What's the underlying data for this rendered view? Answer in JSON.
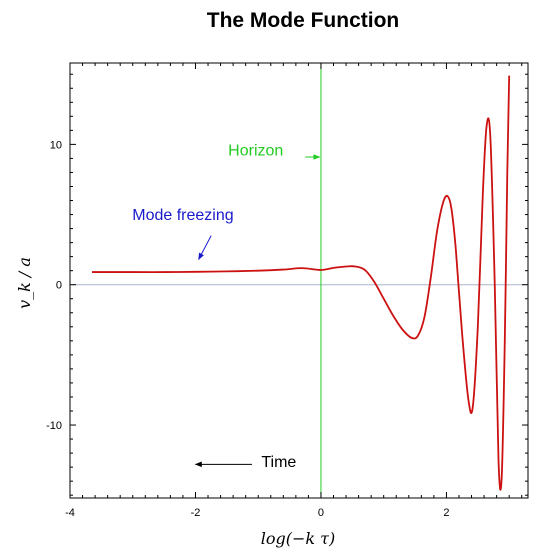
{
  "chart_data": {
    "type": "line",
    "title": "The Mode Function",
    "xlabel": "log(−k τ)",
    "ylabel": "v_k / a",
    "xlim": [
      -4,
      3.3
    ],
    "ylim": [
      -15.2,
      15.8
    ],
    "x_ticks": [
      -4,
      -2,
      0,
      2
    ],
    "x_tick_labels": [
      "-4",
      "-2",
      "0",
      "2"
    ],
    "y_ticks": [
      -10,
      0,
      10
    ],
    "y_tick_labels": [
      "-10",
      "0",
      "10"
    ],
    "grid": false,
    "legend": "none",
    "colors": {
      "curve": "#cc1111",
      "horizon": "#22cc22",
      "zero_line": "#aab4cc",
      "mode_freezing": "#1a1acc",
      "time": "#000000"
    },
    "series": [
      {
        "x": [
          -3.65,
          -3.0,
          -2.5,
          -2.0,
          -1.5,
          -1.0,
          -0.6,
          -0.3,
          0.0,
          0.2,
          0.4,
          0.55,
          0.7,
          0.85,
          1.0,
          1.15,
          1.3,
          1.45,
          1.55,
          1.65,
          1.75,
          1.85,
          1.95,
          2.02,
          2.08,
          2.15,
          2.25,
          2.35,
          2.42,
          2.5,
          2.58,
          2.64,
          2.7,
          2.77,
          2.83,
          2.88,
          2.93,
          2.97,
          3.0
        ],
        "y": [
          0.9,
          0.9,
          0.9,
          0.92,
          0.95,
          1.0,
          1.08,
          1.18,
          1.05,
          1.2,
          1.3,
          1.3,
          1.05,
          0.2,
          -1.0,
          -2.2,
          -3.2,
          -3.8,
          -3.6,
          -2.3,
          0.5,
          3.8,
          5.9,
          6.3,
          5.4,
          2.5,
          -3.5,
          -8.2,
          -8.7,
          -3.0,
          6.5,
          11.3,
          10.5,
          0.0,
          -12.5,
          -13.8,
          -4.0,
          8.0,
          14.9
        ]
      }
    ],
    "vertical_lines": [
      {
        "x": 0
      }
    ],
    "horizontal_lines": [
      {
        "y": 0
      }
    ],
    "annotations": [
      {
        "text": "Horizon",
        "color": "#22cc22",
        "x": -0.6,
        "y": 9.2,
        "arrow_from": [
          -0.25,
          9.1
        ],
        "arrow_to": [
          -0.02,
          9.1
        ]
      },
      {
        "text": "Mode freezing",
        "color": "#1a1acc",
        "x": -2.2,
        "y": 4.6,
        "arrow_from": [
          -1.75,
          3.5
        ],
        "arrow_to": [
          -1.95,
          1.8
        ]
      },
      {
        "text": "Time",
        "color": "#000000",
        "x": -0.95,
        "y": -13.0,
        "arrow_from": [
          -1.1,
          -12.8
        ],
        "arrow_to": [
          -2.0,
          -12.8
        ]
      }
    ]
  }
}
